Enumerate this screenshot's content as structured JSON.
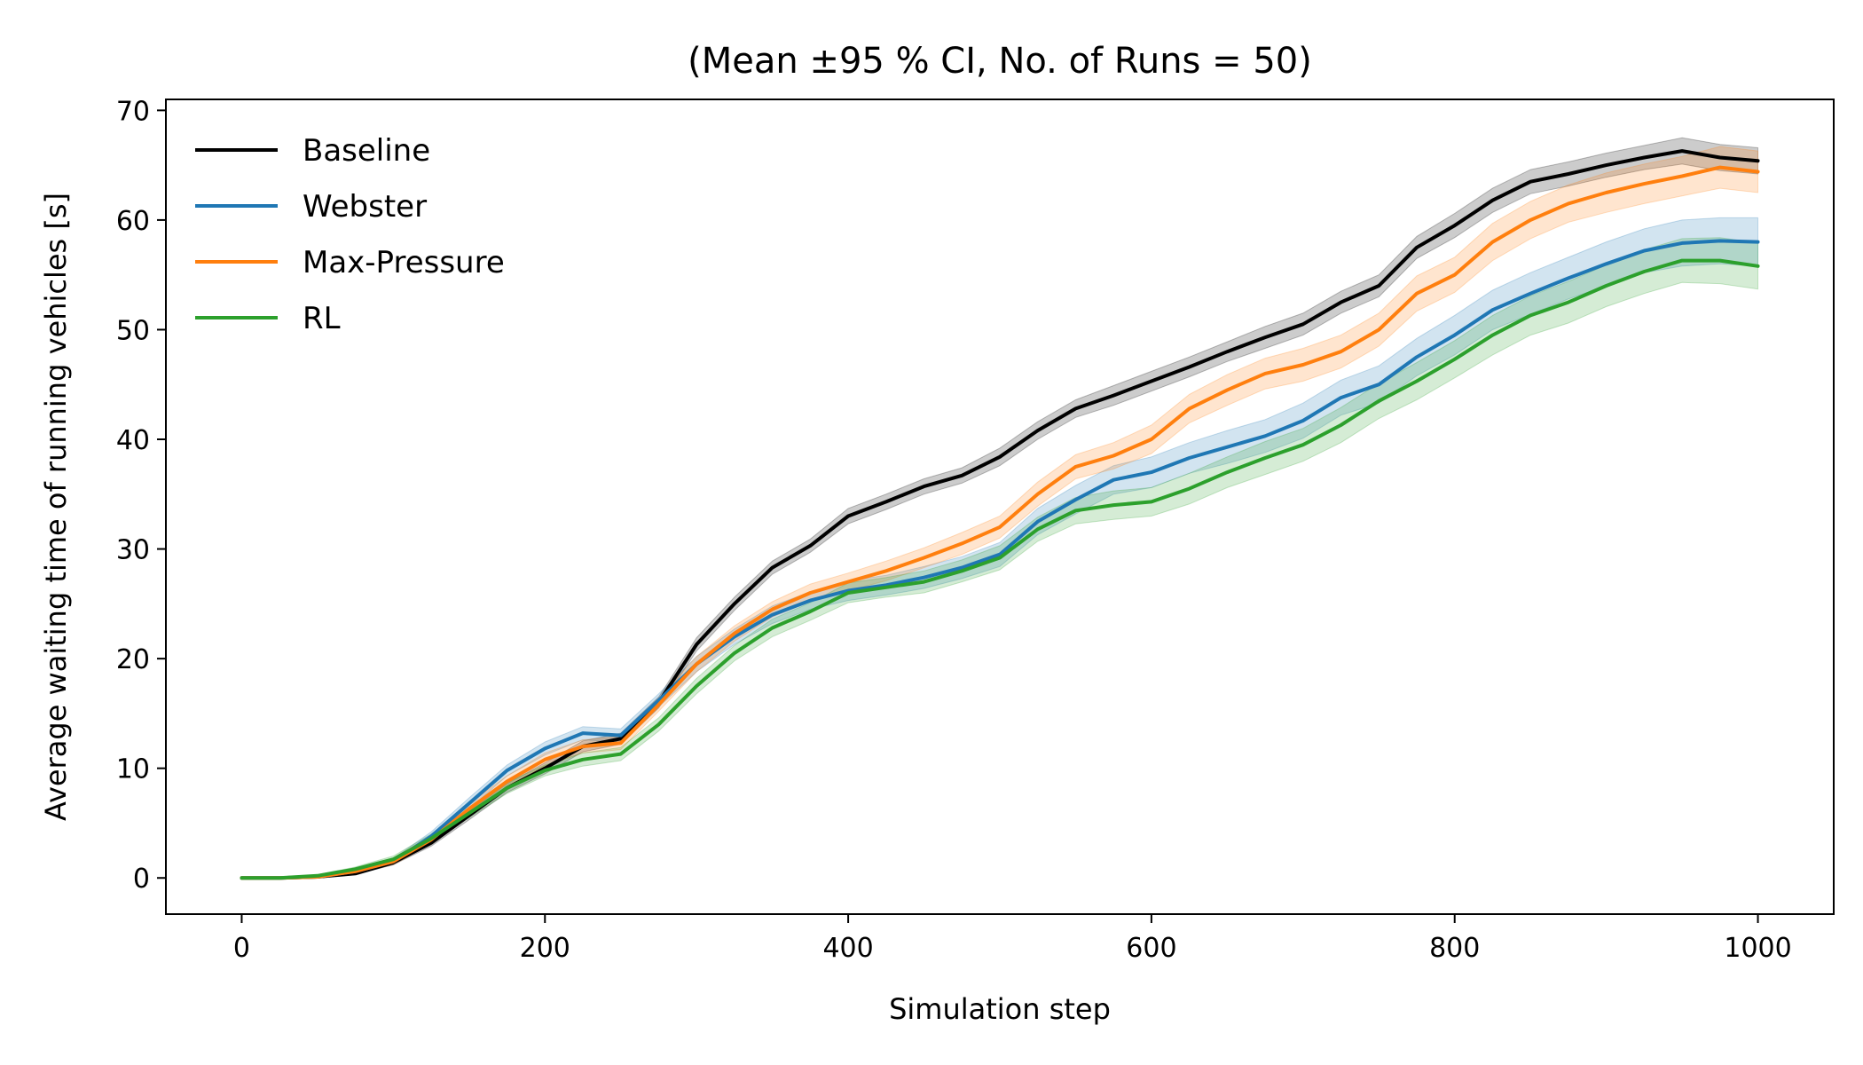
{
  "chart_data": {
    "type": "line",
    "title": "(Mean ±95 % CI, No. of Runs = 50)",
    "xlabel": "Simulation step",
    "ylabel": "Average waiting time of running vehicles [s]",
    "xlim": [
      -50,
      1050
    ],
    "ylim": [
      -3.3,
      71
    ],
    "xticks": [
      0,
      200,
      400,
      600,
      800,
      1000
    ],
    "yticks": [
      0,
      10,
      20,
      30,
      40,
      50,
      60,
      70
    ],
    "grid": false,
    "legend_position": "upper-left",
    "confidence_band": "±95 % CI",
    "x": [
      0,
      25,
      50,
      75,
      100,
      125,
      150,
      175,
      200,
      225,
      250,
      275,
      300,
      325,
      350,
      375,
      400,
      425,
      450,
      475,
      500,
      525,
      550,
      575,
      600,
      625,
      650,
      675,
      700,
      725,
      750,
      775,
      800,
      825,
      850,
      875,
      900,
      925,
      950,
      975,
      1000
    ],
    "series": [
      {
        "name": "Baseline",
        "color": "#000000",
        "values": [
          0,
          0,
          0.1,
          0.4,
          1.4,
          3.2,
          5.7,
          8.2,
          10.0,
          12.0,
          12.7,
          16.0,
          21.3,
          25.0,
          28.3,
          30.3,
          33.0,
          34.3,
          35.7,
          36.7,
          38.4,
          40.8,
          42.8,
          44.0,
          45.3,
          46.6,
          48.0,
          49.3,
          50.5,
          52.5,
          54.0,
          57.5,
          59.5,
          61.8,
          63.5,
          64.2,
          65.0,
          65.7,
          66.3,
          65.7,
          65.4
        ],
        "ci": [
          0,
          0,
          0.1,
          0.1,
          0.2,
          0.3,
          0.4,
          0.4,
          0.5,
          0.5,
          0.5,
          0.5,
          0.6,
          0.6,
          0.6,
          0.6,
          0.7,
          0.7,
          0.7,
          0.7,
          0.8,
          0.8,
          0.8,
          0.9,
          0.9,
          0.9,
          0.9,
          1.0,
          1.0,
          1.0,
          1.0,
          1.0,
          1.1,
          1.1,
          1.1,
          1.1,
          1.1,
          1.1,
          1.2,
          1.2,
          1.2
        ]
      },
      {
        "name": "Webster",
        "color": "#1f77b4",
        "values": [
          0,
          0,
          0.1,
          0.6,
          1.5,
          3.8,
          6.8,
          9.8,
          11.8,
          13.2,
          13.0,
          16.2,
          19.5,
          22.0,
          24.0,
          25.3,
          26.2,
          26.7,
          27.4,
          28.3,
          29.5,
          32.5,
          34.5,
          36.3,
          37.0,
          38.3,
          39.3,
          40.3,
          41.7,
          43.8,
          45.0,
          47.5,
          49.5,
          51.8,
          53.3,
          54.7,
          56.0,
          57.2,
          57.9,
          58.1,
          58.0
        ],
        "ci": [
          0,
          0,
          0.1,
          0.2,
          0.3,
          0.4,
          0.5,
          0.5,
          0.6,
          0.6,
          0.6,
          0.6,
          0.7,
          0.7,
          0.8,
          0.8,
          0.9,
          0.9,
          1.0,
          1.0,
          1.1,
          1.2,
          1.3,
          1.3,
          1.4,
          1.4,
          1.5,
          1.5,
          1.6,
          1.6,
          1.7,
          1.7,
          1.8,
          1.8,
          1.9,
          1.9,
          2.0,
          2.0,
          2.1,
          2.1,
          2.2
        ]
      },
      {
        "name": "Max-Pressure",
        "color": "#ff7f0e",
        "values": [
          0,
          0,
          0.1,
          0.6,
          1.5,
          3.5,
          6.3,
          8.8,
          10.8,
          12.0,
          12.3,
          15.8,
          19.5,
          22.3,
          24.5,
          26.0,
          27.0,
          28.0,
          29.2,
          30.5,
          32.0,
          35.0,
          37.5,
          38.5,
          40.0,
          42.8,
          44.5,
          46.0,
          46.8,
          48.0,
          50.0,
          53.3,
          55.0,
          58.0,
          60.0,
          61.5,
          62.5,
          63.3,
          64.0,
          64.8,
          64.4
        ],
        "ci": [
          0,
          0,
          0.1,
          0.2,
          0.3,
          0.4,
          0.5,
          0.5,
          0.6,
          0.6,
          0.6,
          0.6,
          0.7,
          0.7,
          0.7,
          0.8,
          0.8,
          0.9,
          0.9,
          1.0,
          1.0,
          1.1,
          1.1,
          1.2,
          1.3,
          1.3,
          1.4,
          1.4,
          1.5,
          1.5,
          1.5,
          1.6,
          1.6,
          1.7,
          1.7,
          1.7,
          1.8,
          1.8,
          1.8,
          1.9,
          1.9
        ]
      },
      {
        "name": "RL",
        "color": "#2ca02c",
        "values": [
          0,
          0,
          0.2,
          0.8,
          1.7,
          3.6,
          5.9,
          8.2,
          9.8,
          10.8,
          11.3,
          14.0,
          17.5,
          20.5,
          22.8,
          24.3,
          26.0,
          26.5,
          27.0,
          28.0,
          29.2,
          31.8,
          33.5,
          34.0,
          34.3,
          35.5,
          37.0,
          38.3,
          39.5,
          41.3,
          43.5,
          45.3,
          47.3,
          49.5,
          51.3,
          52.5,
          54.0,
          55.3,
          56.3,
          56.3,
          55.8
        ],
        "ci": [
          0,
          0,
          0.1,
          0.2,
          0.3,
          0.4,
          0.4,
          0.5,
          0.5,
          0.6,
          0.6,
          0.6,
          0.7,
          0.7,
          0.8,
          0.8,
          0.9,
          0.9,
          1.0,
          1.0,
          1.1,
          1.1,
          1.2,
          1.3,
          1.3,
          1.4,
          1.4,
          1.5,
          1.5,
          1.6,
          1.6,
          1.7,
          1.7,
          1.8,
          1.8,
          1.9,
          1.9,
          2.0,
          2.0,
          2.1,
          2.1
        ]
      }
    ]
  }
}
